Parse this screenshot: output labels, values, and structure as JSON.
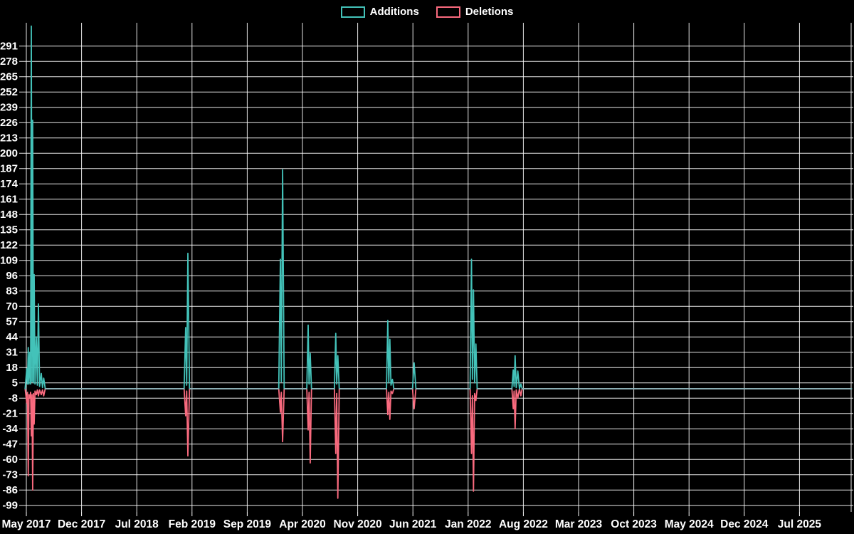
{
  "legend": {
    "additions_label": "Additions",
    "deletions_label": "Deletions"
  },
  "colors": {
    "background": "#000000",
    "grid": "#FFFFFF",
    "text": "#FFFFFF",
    "additions": "#43C2B9",
    "deletions": "#F96A7E",
    "zero_blend": "#8CAEB4"
  },
  "chart_data": {
    "type": "line",
    "title": "",
    "xlabel": "",
    "ylabel": "",
    "legend_position": "top-center",
    "grid": true,
    "x_unit": "months since May 2017",
    "x_tick_months": [
      0,
      7,
      14,
      21,
      28,
      35,
      42,
      49,
      56,
      63,
      70,
      77,
      84,
      91,
      98
    ],
    "x_tick_labels": [
      "May 2017",
      "Dec 2017",
      "Jul 2018",
      "Feb 2019",
      "Sep 2019",
      "Apr 2020",
      "Nov 2020",
      "Jun 2021",
      "Jan 2022",
      "Aug 2022",
      "Mar 2023",
      "Oct 2023",
      "May 2024",
      "Dec 2024",
      "Jul 2025"
    ],
    "y_ticks": [
      -99,
      -86,
      -73,
      -60,
      -47,
      -34,
      -21,
      -8,
      5,
      18,
      31,
      44,
      57,
      70,
      83,
      96,
      109,
      122,
      135,
      148,
      161,
      174,
      187,
      200,
      213,
      226,
      239,
      252,
      265,
      278,
      291
    ],
    "ylim": [
      -101,
      311
    ],
    "xlim_months": [
      -0.4,
      104.6
    ],
    "series": [
      {
        "name": "Additions",
        "color_key": "additions"
      },
      {
        "name": "Deletions",
        "color_key": "deletions"
      }
    ],
    "points": [
      [
        -0.15,
        0,
        0
      ],
      [
        0.05,
        17,
        -12
      ],
      [
        0.14,
        4,
        -3
      ],
      [
        0.24,
        35,
        -74
      ],
      [
        0.33,
        4,
        -5
      ],
      [
        0.45,
        31,
        -8
      ],
      [
        0.54,
        4,
        -3
      ],
      [
        0.63,
        308,
        -40
      ],
      [
        0.72,
        6,
        -5
      ],
      [
        0.8,
        228,
        -86
      ],
      [
        0.9,
        5,
        -4
      ],
      [
        0.99,
        97,
        -30
      ],
      [
        1.1,
        4,
        -2
      ],
      [
        1.26,
        44,
        -5
      ],
      [
        1.4,
        3,
        -1
      ],
      [
        1.53,
        72,
        -6
      ],
      [
        1.68,
        2,
        -1
      ],
      [
        1.89,
        13,
        -5
      ],
      [
        2.05,
        1,
        -1
      ],
      [
        2.2,
        9,
        -6
      ],
      [
        2.4,
        0,
        0
      ],
      [
        20.0,
        0,
        0
      ],
      [
        20.2,
        52,
        -23
      ],
      [
        20.32,
        3,
        -2
      ],
      [
        20.48,
        115,
        -57
      ],
      [
        20.68,
        0,
        0
      ],
      [
        32.0,
        0,
        0
      ],
      [
        32.2,
        110,
        -20
      ],
      [
        32.32,
        6,
        -3
      ],
      [
        32.48,
        186,
        -45
      ],
      [
        32.68,
        0,
        0
      ],
      [
        35.55,
        0,
        0
      ],
      [
        35.72,
        54,
        -35
      ],
      [
        35.84,
        4,
        -3
      ],
      [
        35.98,
        30,
        -63
      ],
      [
        36.15,
        0,
        0
      ],
      [
        39.05,
        0,
        0
      ],
      [
        39.22,
        47,
        -55
      ],
      [
        39.34,
        4,
        -4
      ],
      [
        39.48,
        28,
        -93
      ],
      [
        39.66,
        0,
        0
      ],
      [
        45.65,
        0,
        0
      ],
      [
        45.82,
        58,
        -22
      ],
      [
        45.94,
        5,
        -3
      ],
      [
        46.08,
        42,
        -26
      ],
      [
        46.22,
        3,
        -2
      ],
      [
        46.4,
        8,
        -4
      ],
      [
        46.58,
        0,
        0
      ],
      [
        48.95,
        0,
        0
      ],
      [
        49.15,
        22,
        -17
      ],
      [
        49.38,
        0,
        0
      ],
      [
        56.25,
        0,
        0
      ],
      [
        56.42,
        110,
        -55
      ],
      [
        56.54,
        8,
        -6
      ],
      [
        56.68,
        84,
        -87
      ],
      [
        56.82,
        5,
        -4
      ],
      [
        56.98,
        38,
        -10
      ],
      [
        57.15,
        0,
        0
      ],
      [
        61.55,
        0,
        0
      ],
      [
        61.72,
        16,
        -17
      ],
      [
        61.83,
        2,
        -2
      ],
      [
        61.95,
        28,
        -34
      ],
      [
        62.1,
        1,
        -1
      ],
      [
        62.3,
        15,
        -8
      ],
      [
        62.5,
        0,
        0
      ],
      [
        62.68,
        4,
        -6
      ],
      [
        62.85,
        0,
        0
      ],
      [
        104.6,
        0,
        0
      ]
    ]
  }
}
